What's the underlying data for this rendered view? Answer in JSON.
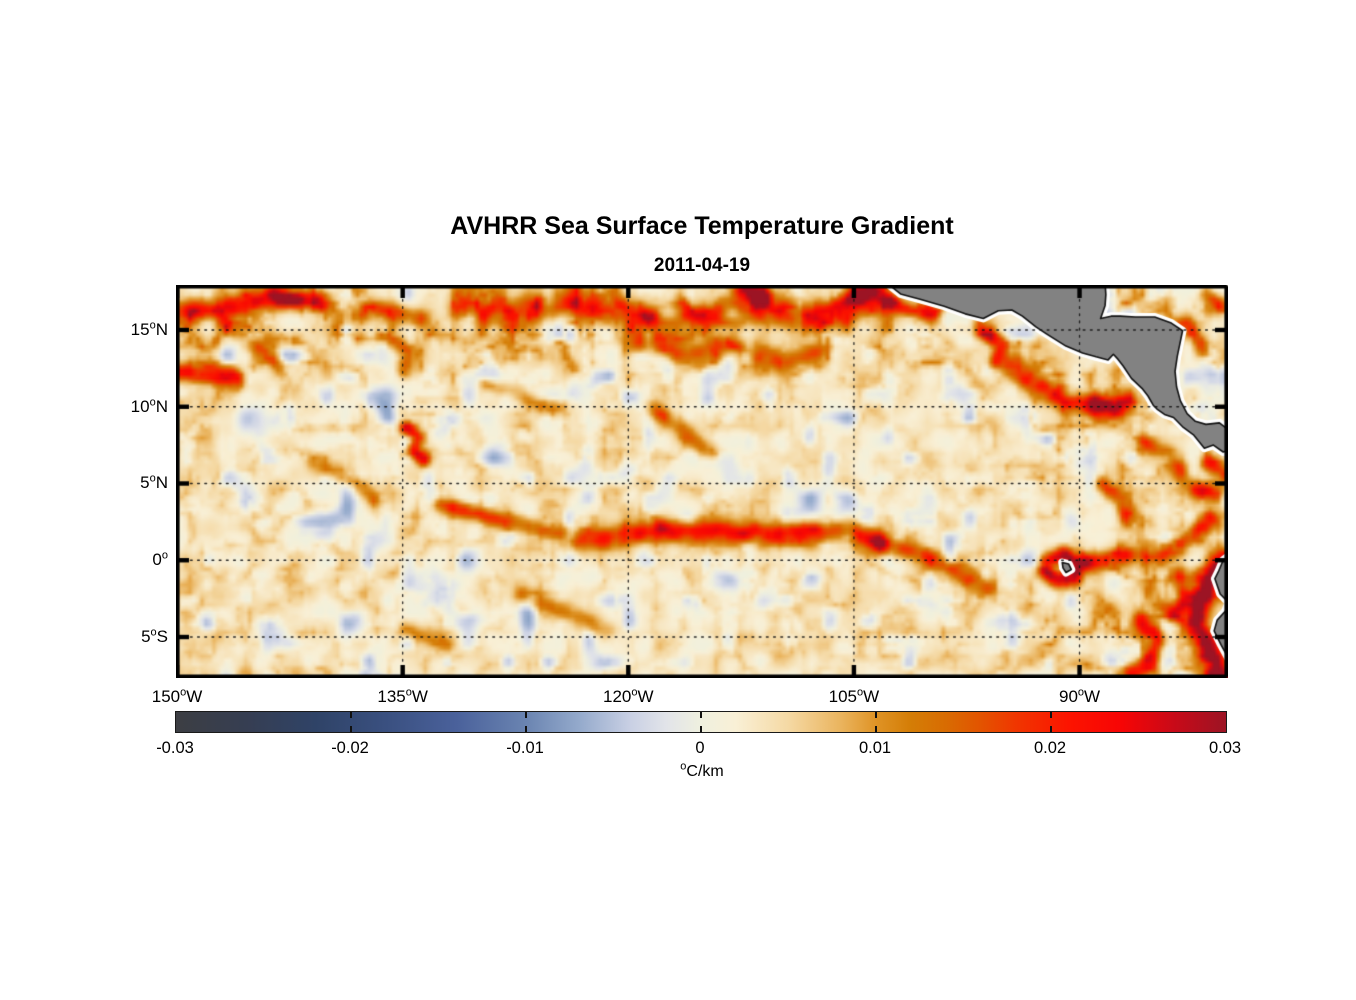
{
  "chart_data": {
    "type": "heatmap",
    "title": "AVHRR Sea Surface Temperature Gradient",
    "date": "2011-04-19",
    "geo": {
      "lon_min": -150.07,
      "lon_max": -80.13,
      "lat_min": -7.67,
      "lat_max": 17.93,
      "grid": "dotted",
      "tick_style": "inside"
    },
    "x_axis": {
      "ticks": [
        {
          "num": "150",
          "dir": "W",
          "lon": -150
        },
        {
          "num": "135",
          "dir": "W",
          "lon": -135
        },
        {
          "num": "120",
          "dir": "W",
          "lon": -120
        },
        {
          "num": "105",
          "dir": "W",
          "lon": -105
        },
        {
          "num": "90",
          "dir": "W",
          "lon": -90
        }
      ]
    },
    "y_axis": {
      "ticks": [
        {
          "num": "15",
          "dir": "N",
          "lat": 15
        },
        {
          "num": "10",
          "dir": "N",
          "lat": 10
        },
        {
          "num": "5",
          "dir": "N",
          "lat": 5
        },
        {
          "num": "0",
          "dir": "",
          "lat": 0
        },
        {
          "num": "5",
          "dir": "S",
          "lat": -5
        }
      ]
    },
    "colorbar": {
      "min": -0.03,
      "max": 0.03,
      "units": "C/km",
      "tick_labels": [
        "-0.03",
        "-0.02",
        "-0.01",
        "0",
        "0.01",
        "0.02",
        "0.03"
      ],
      "tick_values": [
        -0.03,
        -0.02,
        -0.01,
        0,
        0.01,
        0.02,
        0.03
      ],
      "stops": [
        [
          -0.03,
          "#3c3e43"
        ],
        [
          -0.026,
          "#363e52"
        ],
        [
          -0.022,
          "#2f4367"
        ],
        [
          -0.018,
          "#3a5080"
        ],
        [
          -0.014,
          "#4a619b"
        ],
        [
          -0.01,
          "#6a84b1"
        ],
        [
          -0.007,
          "#93a9cb"
        ],
        [
          -0.004,
          "#c9d0e4"
        ],
        [
          -0.002,
          "#e2e4e9"
        ],
        [
          0.0,
          "#eff0df"
        ],
        [
          0.002,
          "#f9f0d6"
        ],
        [
          0.005,
          "#f5d9a4"
        ],
        [
          0.008,
          "#eab45e"
        ],
        [
          0.01,
          "#df9325"
        ],
        [
          0.012,
          "#d47d06"
        ],
        [
          0.014,
          "#d86c02"
        ],
        [
          0.016,
          "#e35300"
        ],
        [
          0.018,
          "#f03600"
        ],
        [
          0.021,
          "#fc1400"
        ],
        [
          0.024,
          "#f70505"
        ],
        [
          0.027,
          "#c90a18"
        ],
        [
          0.03,
          "#9c1424"
        ]
      ]
    },
    "land": {
      "fill": "#828282",
      "coast": "#111111",
      "buffer": "#ffffff",
      "polygons": {
        "central_america": [
          [
            -102.8,
            18.05
          ],
          [
            -101.9,
            17.35
          ],
          [
            -100.6,
            17.0
          ],
          [
            -99.0,
            16.55
          ],
          [
            -97.6,
            16.05
          ],
          [
            -96.4,
            15.75
          ],
          [
            -95.4,
            16.25
          ],
          [
            -94.5,
            16.3
          ],
          [
            -93.8,
            15.9
          ],
          [
            -92.9,
            15.2
          ],
          [
            -92.2,
            14.75
          ],
          [
            -90.9,
            13.95
          ],
          [
            -89.8,
            13.5
          ],
          [
            -88.9,
            13.25
          ],
          [
            -88.1,
            13.05
          ],
          [
            -87.75,
            13.42
          ],
          [
            -87.45,
            13.1
          ],
          [
            -87.1,
            12.65
          ],
          [
            -86.55,
            11.85
          ],
          [
            -85.85,
            11.2
          ],
          [
            -85.45,
            10.7
          ],
          [
            -85.1,
            10.1
          ],
          [
            -84.85,
            9.85
          ],
          [
            -84.35,
            9.5
          ],
          [
            -83.75,
            9.3
          ],
          [
            -83.1,
            8.65
          ],
          [
            -82.4,
            8.15
          ],
          [
            -81.7,
            7.3
          ],
          [
            -81.1,
            7.5
          ],
          [
            -80.45,
            7.05
          ],
          [
            -79.9,
            7.2
          ],
          [
            -79.9,
            8.35
          ],
          [
            -80.7,
            8.95
          ],
          [
            -81.6,
            8.85
          ],
          [
            -82.3,
            9.05
          ],
          [
            -82.85,
            9.55
          ],
          [
            -83.3,
            10.4
          ],
          [
            -83.55,
            11.3
          ],
          [
            -83.65,
            12.3
          ],
          [
            -83.5,
            13.3
          ],
          [
            -83.15,
            14.95
          ],
          [
            -83.9,
            15.45
          ],
          [
            -85.0,
            15.85
          ],
          [
            -86.3,
            15.85
          ],
          [
            -87.3,
            15.9
          ],
          [
            -87.9,
            15.9
          ],
          [
            -88.6,
            15.75
          ],
          [
            -88.3,
            16.6
          ],
          [
            -88.25,
            17.3
          ],
          [
            -88.3,
            18.05
          ]
        ],
        "south_america": [
          [
            -79.85,
            0.45
          ],
          [
            -80.45,
            0.0
          ],
          [
            -80.75,
            -0.7
          ],
          [
            -81.0,
            -1.2
          ],
          [
            -80.65,
            -2.2
          ],
          [
            -80.1,
            -2.75
          ],
          [
            -80.3,
            -3.3
          ],
          [
            -80.85,
            -3.9
          ],
          [
            -81.05,
            -4.6
          ],
          [
            -80.6,
            -5.5
          ],
          [
            -80.15,
            -6.3
          ],
          [
            -79.85,
            -7.0
          ]
        ],
        "galapagos": [
          [
            -91.15,
            -0.15
          ],
          [
            -90.72,
            -0.25
          ],
          [
            -90.55,
            -0.6
          ],
          [
            -90.9,
            -0.8
          ],
          [
            -91.1,
            -0.5
          ]
        ]
      }
    },
    "field": {
      "seed": 7,
      "background": 0.0018,
      "filament_amp": 0.017,
      "features": [
        {
          "path": [
            [
              -150,
              16.2
            ],
            [
              -146,
              16.6
            ],
            [
              -143,
              17.1
            ],
            [
              -140.6,
              16.9
            ]
          ],
          "w": 0.7,
          "a": 0.016
        },
        {
          "path": [
            [
              -143.6,
              17.25
            ],
            [
              -142.2,
              17.1
            ]
          ],
          "w": 0.55,
          "a": 0.012
        },
        {
          "path": [
            [
              -150,
              12.3
            ],
            [
              -147.6,
              12.2
            ],
            [
              -146,
              11.7
            ]
          ],
          "w": 0.6,
          "a": 0.02
        },
        {
          "path": [
            [
              -147,
              15.4
            ],
            [
              -144.8,
              14.0
            ],
            [
              -143.4,
              12.9
            ]
          ],
          "w": 0.5,
          "a": 0.01
        },
        {
          "path": [
            [
              -139,
              15.9
            ],
            [
              -136.4,
              16.4
            ],
            [
              -133.8,
              15.8
            ]
          ],
          "w": 0.6,
          "a": 0.011
        },
        {
          "path": [
            [
              -136.2,
              14.6
            ],
            [
              -134.6,
              13.5
            ],
            [
              -134.9,
              12.4
            ]
          ],
          "w": 0.5,
          "a": 0.011
        },
        {
          "path": [
            [
              -134.8,
              8.6
            ],
            [
              -134.0,
              8.0
            ],
            [
              -134.3,
              7.1
            ],
            [
              -133.6,
              6.6
            ]
          ],
          "w": 0.45,
          "a": 0.021
        },
        {
          "path": [
            [
              -131,
              16.6
            ],
            [
              -128,
              16.2
            ],
            [
              -124.5,
              16.8
            ],
            [
              -121,
              16.3
            ],
            [
              -118,
              15.6
            ],
            [
              -115,
              15.9
            ],
            [
              -112,
              16.4
            ],
            [
              -108.5,
              15.8
            ],
            [
              -105.5,
              16.4
            ],
            [
              -102.9,
              17.0
            ]
          ],
          "w": 0.9,
          "a": 0.015
        },
        {
          "path": [
            [
              -119.5,
              14.2
            ],
            [
              -116,
              13.4
            ],
            [
              -113,
              13.8
            ],
            [
              -110,
              13.0
            ],
            [
              -107.5,
              13.5
            ]
          ],
          "w": 0.7,
          "a": 0.013
        },
        {
          "path": [
            [
              -112.3,
              17.6
            ],
            [
              -111.2,
              17.2
            ]
          ],
          "w": 0.6,
          "a": 0.024
        },
        {
          "path": [
            [
              -104.9,
              17.3
            ],
            [
              -103.9,
              17.6
            ]
          ],
          "w": 0.55,
          "a": 0.024
        },
        {
          "path": [
            [
              -118.3,
              9.8
            ],
            [
              -116.5,
              8.6
            ],
            [
              -114.6,
              7.0
            ]
          ],
          "w": 0.55,
          "a": 0.012
        },
        {
          "path": [
            [
              -141,
              6.3
            ],
            [
              -138.5,
              5.2
            ],
            [
              -137,
              4.0
            ]
          ],
          "w": 0.5,
          "a": 0.009
        },
        {
          "path": [
            [
              -129.5,
              11.5
            ],
            [
              -127,
              10.8
            ],
            [
              -125.2,
              9.9
            ]
          ],
          "w": 0.5,
          "a": 0.009
        },
        {
          "path": [
            [
              -132.5,
              3.6
            ],
            [
              -128.5,
              2.6
            ],
            [
              -124.6,
              1.8
            ]
          ],
          "w": 0.55,
          "a": 0.013
        },
        {
          "path": [
            [
              -122.8,
              1.3
            ],
            [
              -119,
              1.9
            ],
            [
              -115,
              1.9
            ],
            [
              -111,
              1.7
            ],
            [
              -108,
              1.8
            ],
            [
              -105.3,
              1.9
            ],
            [
              -103.5,
              1.2
            ]
          ],
          "w": 0.75,
          "a": 0.02
        },
        {
          "path": [
            [
              -103.5,
              1.2
            ],
            [
              -100.8,
              0.5
            ],
            [
              -98.5,
              -0.6
            ],
            [
              -96.2,
              -1.8
            ]
          ],
          "w": 0.6,
          "a": 0.014
        },
        {
          "path": [
            [
              -92.2,
              -0.1
            ],
            [
              -91.2,
              0.35
            ],
            [
              -90.1,
              -0.2
            ],
            [
              -90.4,
              -1.2
            ],
            [
              -91.6,
              -1.3
            ],
            [
              -92.3,
              -0.6
            ]
          ],
          "w": 0.5,
          "a": 0.023
        },
        {
          "path": [
            [
              -89.3,
              -0.2
            ],
            [
              -87,
              0.4
            ],
            [
              -84.6,
              0.2
            ],
            [
              -82.6,
              1.5
            ],
            [
              -81.3,
              2.6
            ]
          ],
          "w": 0.6,
          "a": 0.016
        },
        {
          "path": [
            [
              -80.3,
              0.0
            ],
            [
              -81.3,
              -1.2
            ],
            [
              -81.9,
              -2.6
            ],
            [
              -82.3,
              -4.2
            ],
            [
              -81.5,
              -5.8
            ],
            [
              -80.8,
              -7.4
            ]
          ],
          "w": 0.8,
          "a": 0.026
        },
        {
          "path": [
            [
              -85.9,
              -4.0
            ],
            [
              -84.9,
              -5.2
            ],
            [
              -85.3,
              -6.6
            ],
            [
              -86.6,
              -7.2
            ]
          ],
          "w": 0.6,
          "a": 0.024
        },
        {
          "path": [
            [
              -83.5,
              -0.9
            ],
            [
              -83.0,
              -2.4
            ],
            [
              -83.8,
              -3.6
            ]
          ],
          "w": 0.5,
          "a": 0.015
        },
        {
          "path": [
            [
              -88.8,
              10.3
            ],
            [
              -87.6,
              9.9
            ],
            [
              -86.8,
              10.4
            ]
          ],
          "w": 0.6,
          "a": 0.021
        },
        {
          "path": [
            [
              -94.5,
              12.6
            ],
            [
              -92.8,
              11.4
            ],
            [
              -90.9,
              10.4
            ],
            [
              -89.4,
              10.1
            ]
          ],
          "w": 0.7,
          "a": 0.018
        },
        {
          "path": [
            [
              -96.3,
              14.9
            ],
            [
              -95.2,
              13.9
            ],
            [
              -95.6,
              12.9
            ]
          ],
          "w": 0.5,
          "a": 0.016
        },
        {
          "path": [
            [
              -102.6,
              16.9
            ],
            [
              -101.2,
              16.3
            ],
            [
              -99.8,
              16.0
            ]
          ],
          "w": 0.5,
          "a": 0.015
        },
        {
          "path": [
            [
              -81.5,
              6.3
            ],
            [
              -80.4,
              5.6
            ]
          ],
          "w": 0.5,
          "a": 0.016
        },
        {
          "path": [
            [
              -85.5,
              7.6
            ],
            [
              -84.1,
              6.9
            ],
            [
              -83.2,
              5.6
            ],
            [
              -82.2,
              4.6
            ],
            [
              -81.0,
              4.3
            ]
          ],
          "w": 0.55,
          "a": 0.014
        },
        {
          "path": [
            [
              -88.5,
              5.0
            ],
            [
              -87.3,
              3.9
            ],
            [
              -86.9,
              2.6
            ]
          ],
          "w": 0.5,
          "a": 0.013
        },
        {
          "path": [
            [
              -82.9,
              15.6
            ],
            [
              -82.2,
              14.4
            ],
            [
              -81.9,
              13.6
            ]
          ],
          "w": 0.45,
          "a": 0.012
        },
        {
          "path": [
            [
              -81.6,
              17.3
            ],
            [
              -80.6,
              16.7
            ]
          ],
          "w": 0.5,
          "a": 0.01
        },
        {
          "path": [
            [
              -127,
              -2.3
            ],
            [
              -124,
              -3.3
            ],
            [
              -121.5,
              -4.6
            ]
          ],
          "w": 0.6,
          "a": 0.008
        },
        {
          "path": [
            [
              -135,
              -4.5
            ],
            [
              -132,
              -5.5
            ]
          ],
          "w": 0.5,
          "a": 0.007
        }
      ]
    }
  }
}
